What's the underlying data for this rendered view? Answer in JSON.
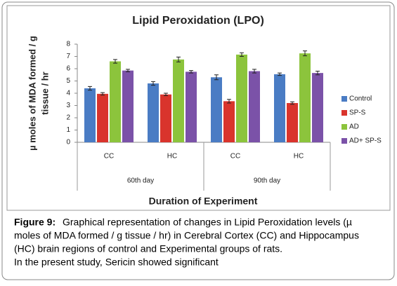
{
  "chart_data": {
    "type": "bar",
    "title": "Lipid Peroxidation (LPO)",
    "y_label": [
      "µ moles of MDA formed / g",
      "tissue / hr"
    ],
    "x_label": "Duration of Experiment",
    "categories": [
      "CC",
      "HC",
      "CC",
      "HC"
    ],
    "groups": [
      "60th day",
      "90th day"
    ],
    "series": [
      {
        "name": "Control",
        "color": "#4a7cc4",
        "values": [
          4.4,
          4.8,
          5.3,
          5.55
        ],
        "errors": [
          0.15,
          0.15,
          0.2,
          0.1
        ]
      },
      {
        "name": "SP-S",
        "color": "#d9342c",
        "values": [
          3.95,
          3.9,
          3.35,
          3.2
        ],
        "errors": [
          0.1,
          0.1,
          0.15,
          0.1
        ]
      },
      {
        "name": "AD",
        "color": "#8cc43c",
        "values": [
          6.6,
          6.75,
          7.15,
          7.25
        ],
        "errors": [
          0.15,
          0.2,
          0.15,
          0.2
        ]
      },
      {
        "name": "AD+ SP-S",
        "color": "#7b52a8",
        "values": [
          5.85,
          5.75,
          5.8,
          5.65
        ],
        "errors": [
          0.1,
          0.1,
          0.15,
          0.15
        ]
      }
    ],
    "ylim": [
      0,
      8
    ],
    "yticks": [
      0,
      1,
      2,
      3,
      4,
      5,
      6,
      7,
      8
    ],
    "grid": false,
    "legend": "right"
  },
  "caption": {
    "label": "Figure 9:",
    "lines": [
      "Graphical representation of changes in Lipid Peroxidation levels (µ",
      "moles of MDA formed / g tissue / hr) in Cerebral Cortex (CC) and Hippocampus",
      "(HC) brain regions of control and Experimental groups of rats.",
      "In the present study, Sericin showed significant"
    ]
  }
}
